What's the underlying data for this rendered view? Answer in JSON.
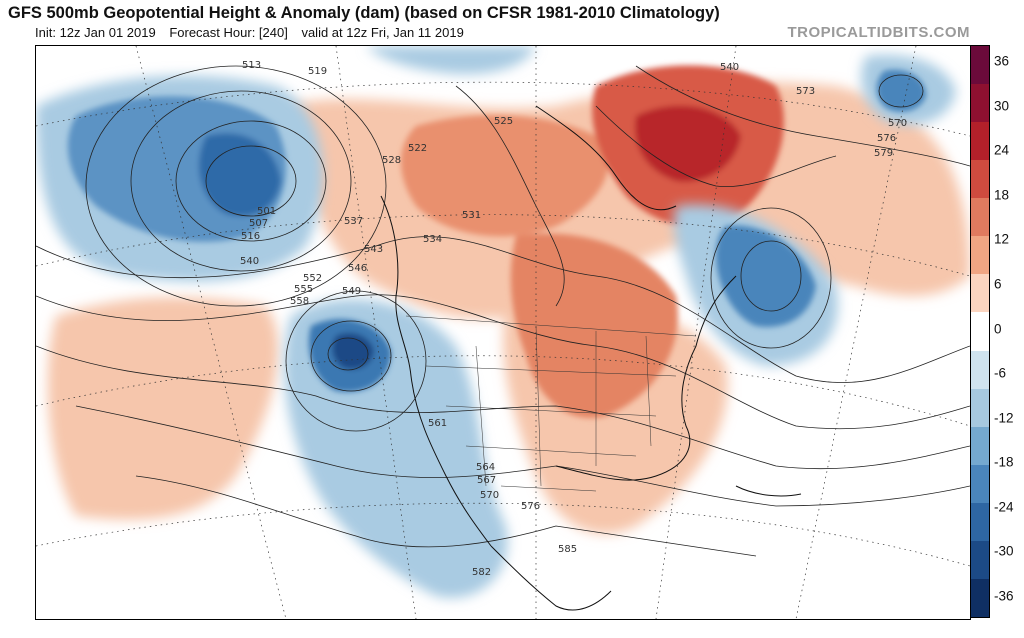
{
  "header": {
    "title": "GFS 500mb Geopotential Height & Anomaly (dam) (based on CFSR 1981-2010 Climatology)",
    "init": "Init: 12z Jan 01 2019",
    "forecast_hour": "Forecast Hour: [240]",
    "valid": "valid at 12z Fri, Jan 11 2019",
    "brand": "TROPICALTIDBITS.COM"
  },
  "colorbar": {
    "labels": [
      "36",
      "30",
      "24",
      "18",
      "12",
      "6",
      "0",
      "-6",
      "-12",
      "-18",
      "-24",
      "-30",
      "-36"
    ],
    "colors": [
      "#6b0a3a",
      "#8e1030",
      "#b2202a",
      "#cf4b3f",
      "#e07a5f",
      "#f0a583",
      "#fbd4bf",
      "#ffffff",
      "#cfe3ef",
      "#a6c9e0",
      "#75a9cf",
      "#4a85bb",
      "#2e66a3",
      "#1c4a86",
      "#0f2f63"
    ]
  },
  "map": {
    "contour_labels": [
      "513",
      "519",
      "540",
      "573",
      "570",
      "576",
      "579",
      "525",
      "528",
      "522",
      "531",
      "534",
      "537",
      "543",
      "546",
      "549",
      "552",
      "555",
      "558",
      "501",
      "507",
      "516",
      "540",
      "561",
      "564",
      "567",
      "570",
      "576",
      "582",
      "585"
    ]
  }
}
